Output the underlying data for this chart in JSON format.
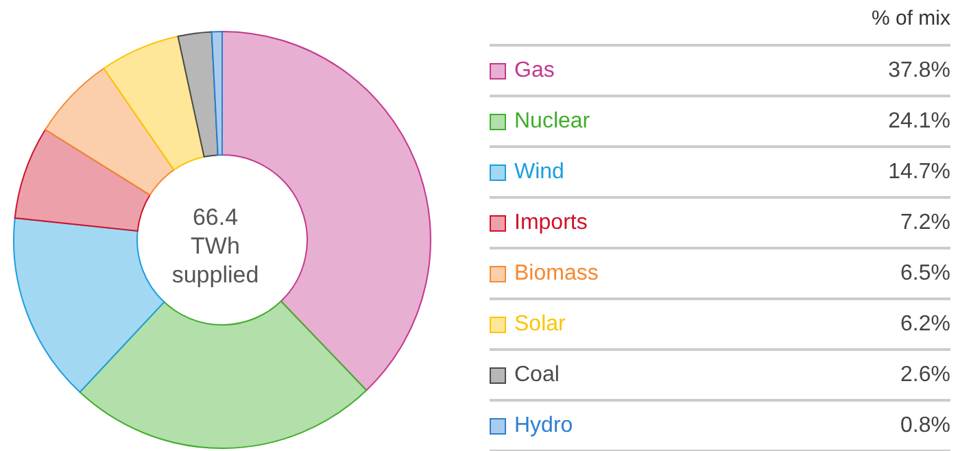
{
  "chart_data": {
    "type": "donut",
    "legend_title": "% of mix",
    "annotations": [
      "66.4 TWh supplied"
    ],
    "legend": "right",
    "categories": [
      "Gas",
      "Nuclear",
      "Wind",
      "Imports",
      "Biomass",
      "Solar",
      "Coal",
      "Hydro"
    ],
    "values": [
      37.8,
      24.1,
      14.7,
      7.2,
      6.5,
      6.2,
      2.6,
      0.8
    ],
    "value_labels": [
      "37.8%",
      "24.1%",
      "14.7%",
      "7.2%",
      "6.5%",
      "6.2%",
      "2.6%",
      "0.8%"
    ],
    "colors": [
      "#c4378f",
      "#3fae2a",
      "#1a9ee0",
      "#d0112b",
      "#f7882f",
      "#fcc400",
      "#4a4a4a",
      "#2b7fd0"
    ]
  }
}
